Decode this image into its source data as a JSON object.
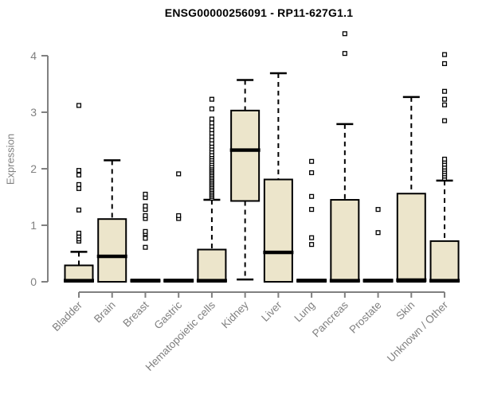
{
  "chart_data": {
    "type": "boxplot",
    "title": "ENSG00000256091 - RP11-627G1.1",
    "xlabel": "",
    "ylabel": "Expression",
    "ylim": [
      0,
      4.5
    ],
    "yticks": [
      0,
      1,
      2,
      3,
      4
    ],
    "grid": false,
    "colors": {
      "box_fill": "#ECE5CB",
      "box_border": "#000000",
      "median": "#000000",
      "whisker": "#000000",
      "axis": "#808080",
      "title": "#000000"
    },
    "categories": [
      "Bladder",
      "Brain",
      "Breast",
      "Gastric",
      "Hematopoietic cells",
      "Kidney",
      "Liver",
      "Lung",
      "Pancreas",
      "Prostate",
      "Skin",
      "Unknown / Other"
    ],
    "series": [
      {
        "name": "Bladder",
        "lo": 0,
        "q1": 0,
        "median": 0.02,
        "q3": 0.29,
        "hi": 0.53,
        "outliers": [
          0.72,
          0.76,
          0.81,
          0.86,
          1.27,
          1.65,
          1.72,
          1.89,
          1.97,
          3.12
        ]
      },
      {
        "name": "Brain",
        "lo": 0,
        "q1": 0,
        "median": 0.45,
        "q3": 1.11,
        "hi": 2.15,
        "outliers": []
      },
      {
        "name": "Breast",
        "lo": 0,
        "q1": 0,
        "median": 0.02,
        "q3": 0.04,
        "hi": 0.04,
        "outliers": [
          0.61,
          0.77,
          0.85,
          0.89,
          1.12,
          1.17,
          1.28,
          1.34,
          1.49,
          1.55
        ]
      },
      {
        "name": "Gastric",
        "lo": 0,
        "q1": 0,
        "median": 0.02,
        "q3": 0.04,
        "hi": 0.04,
        "outliers": [
          1.12,
          1.17,
          1.91
        ]
      },
      {
        "name": "Hematopoietic cells",
        "lo": 0,
        "q1": 0,
        "median": 0.02,
        "q3": 0.57,
        "hi": 1.45,
        "outliers": [
          1.48,
          1.51,
          1.54,
          1.57,
          1.6,
          1.63,
          1.66,
          1.69,
          1.72,
          1.75,
          1.78,
          1.81,
          1.84,
          1.87,
          1.9,
          1.93,
          1.96,
          1.99,
          2.02,
          2.05,
          2.09,
          2.13,
          2.17,
          2.21,
          2.25,
          2.3,
          2.35,
          2.4,
          2.45,
          2.51,
          2.57,
          2.63,
          2.69,
          2.75,
          2.81,
          2.88,
          3.06,
          3.23
        ]
      },
      {
        "name": "Kidney",
        "lo": 0.04,
        "q1": 1.43,
        "median": 2.33,
        "q3": 3.03,
        "hi": 3.57,
        "outliers": []
      },
      {
        "name": "Liver",
        "lo": 0,
        "q1": 0,
        "median": 0.52,
        "q3": 1.81,
        "hi": 3.69,
        "outliers": []
      },
      {
        "name": "Lung",
        "lo": 0,
        "q1": 0,
        "median": 0.02,
        "q3": 0.04,
        "hi": 0.04,
        "outliers": [
          0.66,
          0.78,
          1.28,
          1.51,
          1.93,
          2.13
        ]
      },
      {
        "name": "Pancreas",
        "lo": 0,
        "q1": 0,
        "median": 0.02,
        "q3": 1.45,
        "hi": 2.79,
        "outliers": [
          4.04,
          4.39
        ]
      },
      {
        "name": "Prostate",
        "lo": 0,
        "q1": 0,
        "median": 0.02,
        "q3": 0.04,
        "hi": 0.04,
        "outliers": [
          0.87,
          1.28
        ]
      },
      {
        "name": "Skin",
        "lo": 0,
        "q1": 0,
        "median": 0.03,
        "q3": 1.56,
        "hi": 3.27,
        "outliers": []
      },
      {
        "name": "Unknown / Other",
        "lo": 0,
        "q1": 0,
        "median": 0.02,
        "q3": 0.72,
        "hi": 1.79,
        "outliers": [
          1.83,
          1.87,
          1.91,
          1.95,
          1.99,
          2.03,
          2.08,
          2.13,
          2.17,
          2.85,
          3.13,
          3.23,
          3.37,
          3.86,
          4.02
        ]
      }
    ]
  }
}
